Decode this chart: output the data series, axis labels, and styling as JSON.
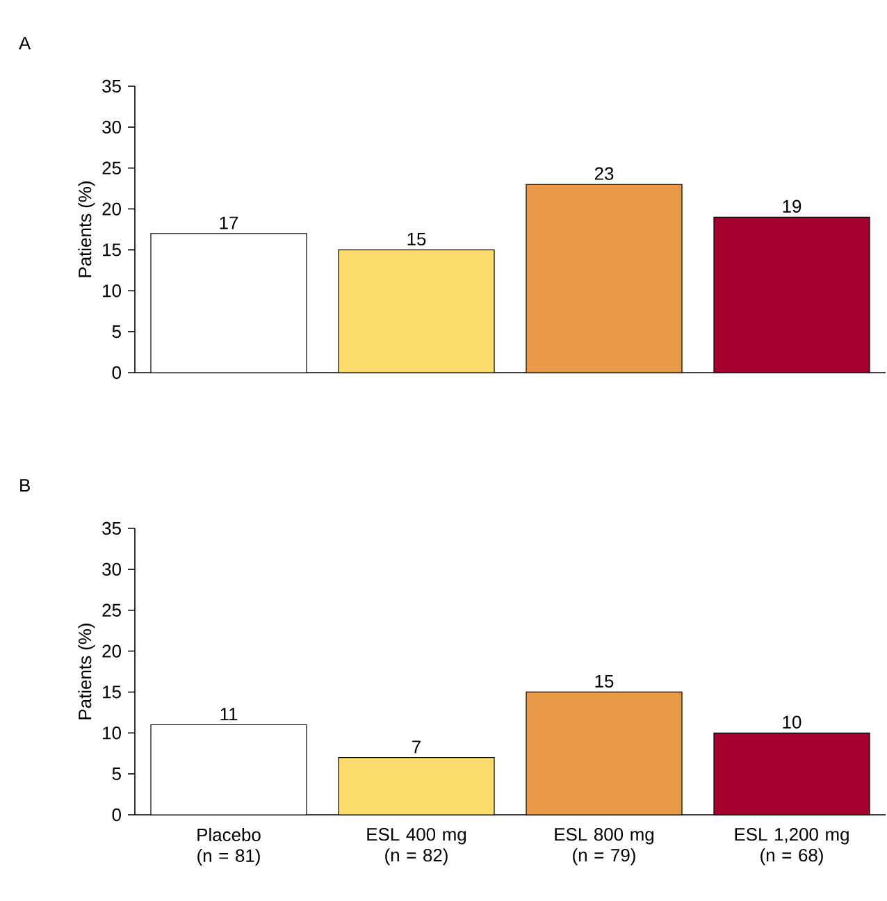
{
  "chart_data": [
    {
      "type": "bar",
      "title": "A",
      "ylabel": "Patients (%)",
      "categories": [
        null,
        null,
        null,
        null
      ],
      "values": [
        17,
        15,
        23,
        19
      ],
      "colors": [
        "#ffffff",
        "#fddc6e",
        "#e89a48",
        "#a3002f"
      ],
      "ylim": [
        0,
        35
      ],
      "yticks": [
        0,
        5,
        10,
        15,
        20,
        25,
        30,
        35
      ],
      "data_labels": true,
      "tick_labels": "y"
    },
    {
      "type": "bar",
      "title": "B",
      "ylabel": "Patients (%)",
      "categories": [
        "Placebo\n(n = 81)",
        "ESL 400 mg\n(n = 82)",
        "ESL 800 mg\n(n = 79)",
        "ESL 1,200 mg\n(n = 68)"
      ],
      "values": [
        11,
        7,
        15,
        10
      ],
      "colors": [
        "#ffffff",
        "#fddc6e",
        "#e89a48",
        "#a3002f"
      ],
      "ylim": [
        0,
        35
      ],
      "yticks": [
        0,
        5,
        10,
        15,
        20,
        25,
        30,
        35
      ],
      "data_labels": true
    }
  ]
}
